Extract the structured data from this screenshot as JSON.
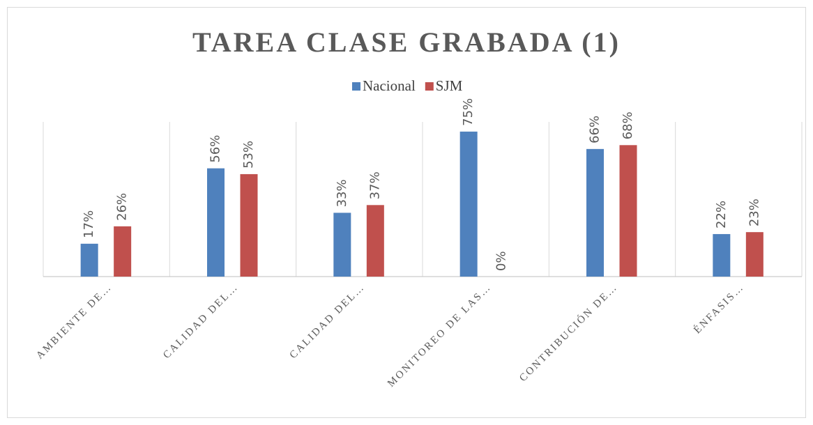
{
  "chart_data": {
    "type": "bar",
    "title": "TAREA CLASE GRABADA (1)",
    "categories": [
      "AMBIENTE DE…",
      "CALIDAD DEL…",
      "CALIDAD DEL…",
      "MONITOREO DE LAS…",
      "CONTRIBUCIÓN DE…",
      "ÉNFASIS…"
    ],
    "series": [
      {
        "name": "Nacional",
        "color": "#4f81bd",
        "values": [
          17,
          56,
          33,
          75,
          66,
          22
        ],
        "value_labels": [
          "17%",
          "56%",
          "33%",
          "75%",
          "66%",
          "22%"
        ]
      },
      {
        "name": "SJM",
        "color": "#c0504d",
        "values": [
          26,
          53,
          37,
          0,
          68,
          23
        ],
        "value_labels": [
          "26%",
          "53%",
          "37%",
          "0%",
          "68%",
          "23%"
        ]
      }
    ],
    "ylim": [
      0,
      80
    ],
    "legend": "top"
  }
}
